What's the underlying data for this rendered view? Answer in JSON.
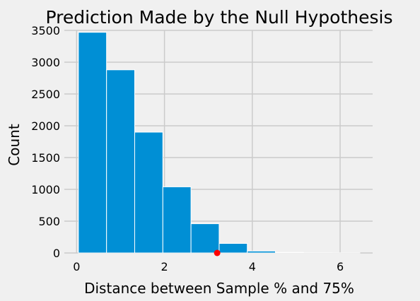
{
  "chart_data": {
    "type": "bar",
    "title": "Prediction Made by the Null Hypothesis",
    "xlabel": "Distance between Sample % and 75%",
    "ylabel": "Count",
    "bin_edges": [
      0.04,
      0.681,
      1.322,
      1.963,
      2.604,
      3.245,
      3.886,
      4.527,
      5.168,
      5.809,
      6.45
    ],
    "values": [
      3470,
      2880,
      1900,
      1040,
      460,
      150,
      30,
      8,
      3,
      2
    ],
    "xlim": [
      -0.28,
      6.74
    ],
    "ylim": [
      0,
      3500
    ],
    "xticks": [
      0,
      2,
      4,
      6
    ],
    "yticks": [
      0,
      500,
      1000,
      1500,
      2000,
      2500,
      3000,
      3500
    ],
    "observed_point": {
      "x": 3.2,
      "y": 0
    },
    "grid": true,
    "colors": {
      "bars": "#008fd5",
      "point": "#ff0000",
      "grid": "#cbcbcb",
      "background": "#f0f0f0"
    }
  }
}
